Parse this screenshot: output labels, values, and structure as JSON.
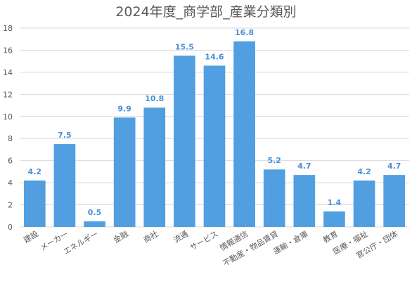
{
  "chart_data": {
    "type": "bar",
    "title": "2024年度_商学部_産業分類別",
    "categories": [
      "建設",
      "メーカー",
      "エネルギー",
      "金融",
      "商社",
      "流通",
      "サービス",
      "情報通信",
      "不動産・物品賃貸",
      "運輸・倉庫",
      "教育",
      "医療・福祉",
      "官公庁・団体"
    ],
    "values": [
      4.2,
      7.5,
      0.5,
      9.9,
      10.8,
      15.5,
      14.6,
      16.8,
      5.2,
      4.7,
      1.4,
      4.2,
      4.7
    ],
    "data_labels": [
      "4.2",
      "7.5",
      "0.5",
      "9.9",
      "10.8",
      "15.5",
      "14.6",
      "16.8",
      "5.2",
      "4.7",
      "1.4",
      "4.2",
      "4.7"
    ],
    "yticks": [
      "0",
      "2",
      "4",
      "6",
      "8",
      "10",
      "12",
      "14",
      "16",
      "18"
    ],
    "ylim": [
      0,
      18
    ],
    "xlabel": "",
    "ylabel": "",
    "grid": true,
    "colors": {
      "bar": "#519fe0",
      "label": "#4a90d9",
      "grid": "#d9d9d9",
      "axis_text": "#595959"
    }
  }
}
